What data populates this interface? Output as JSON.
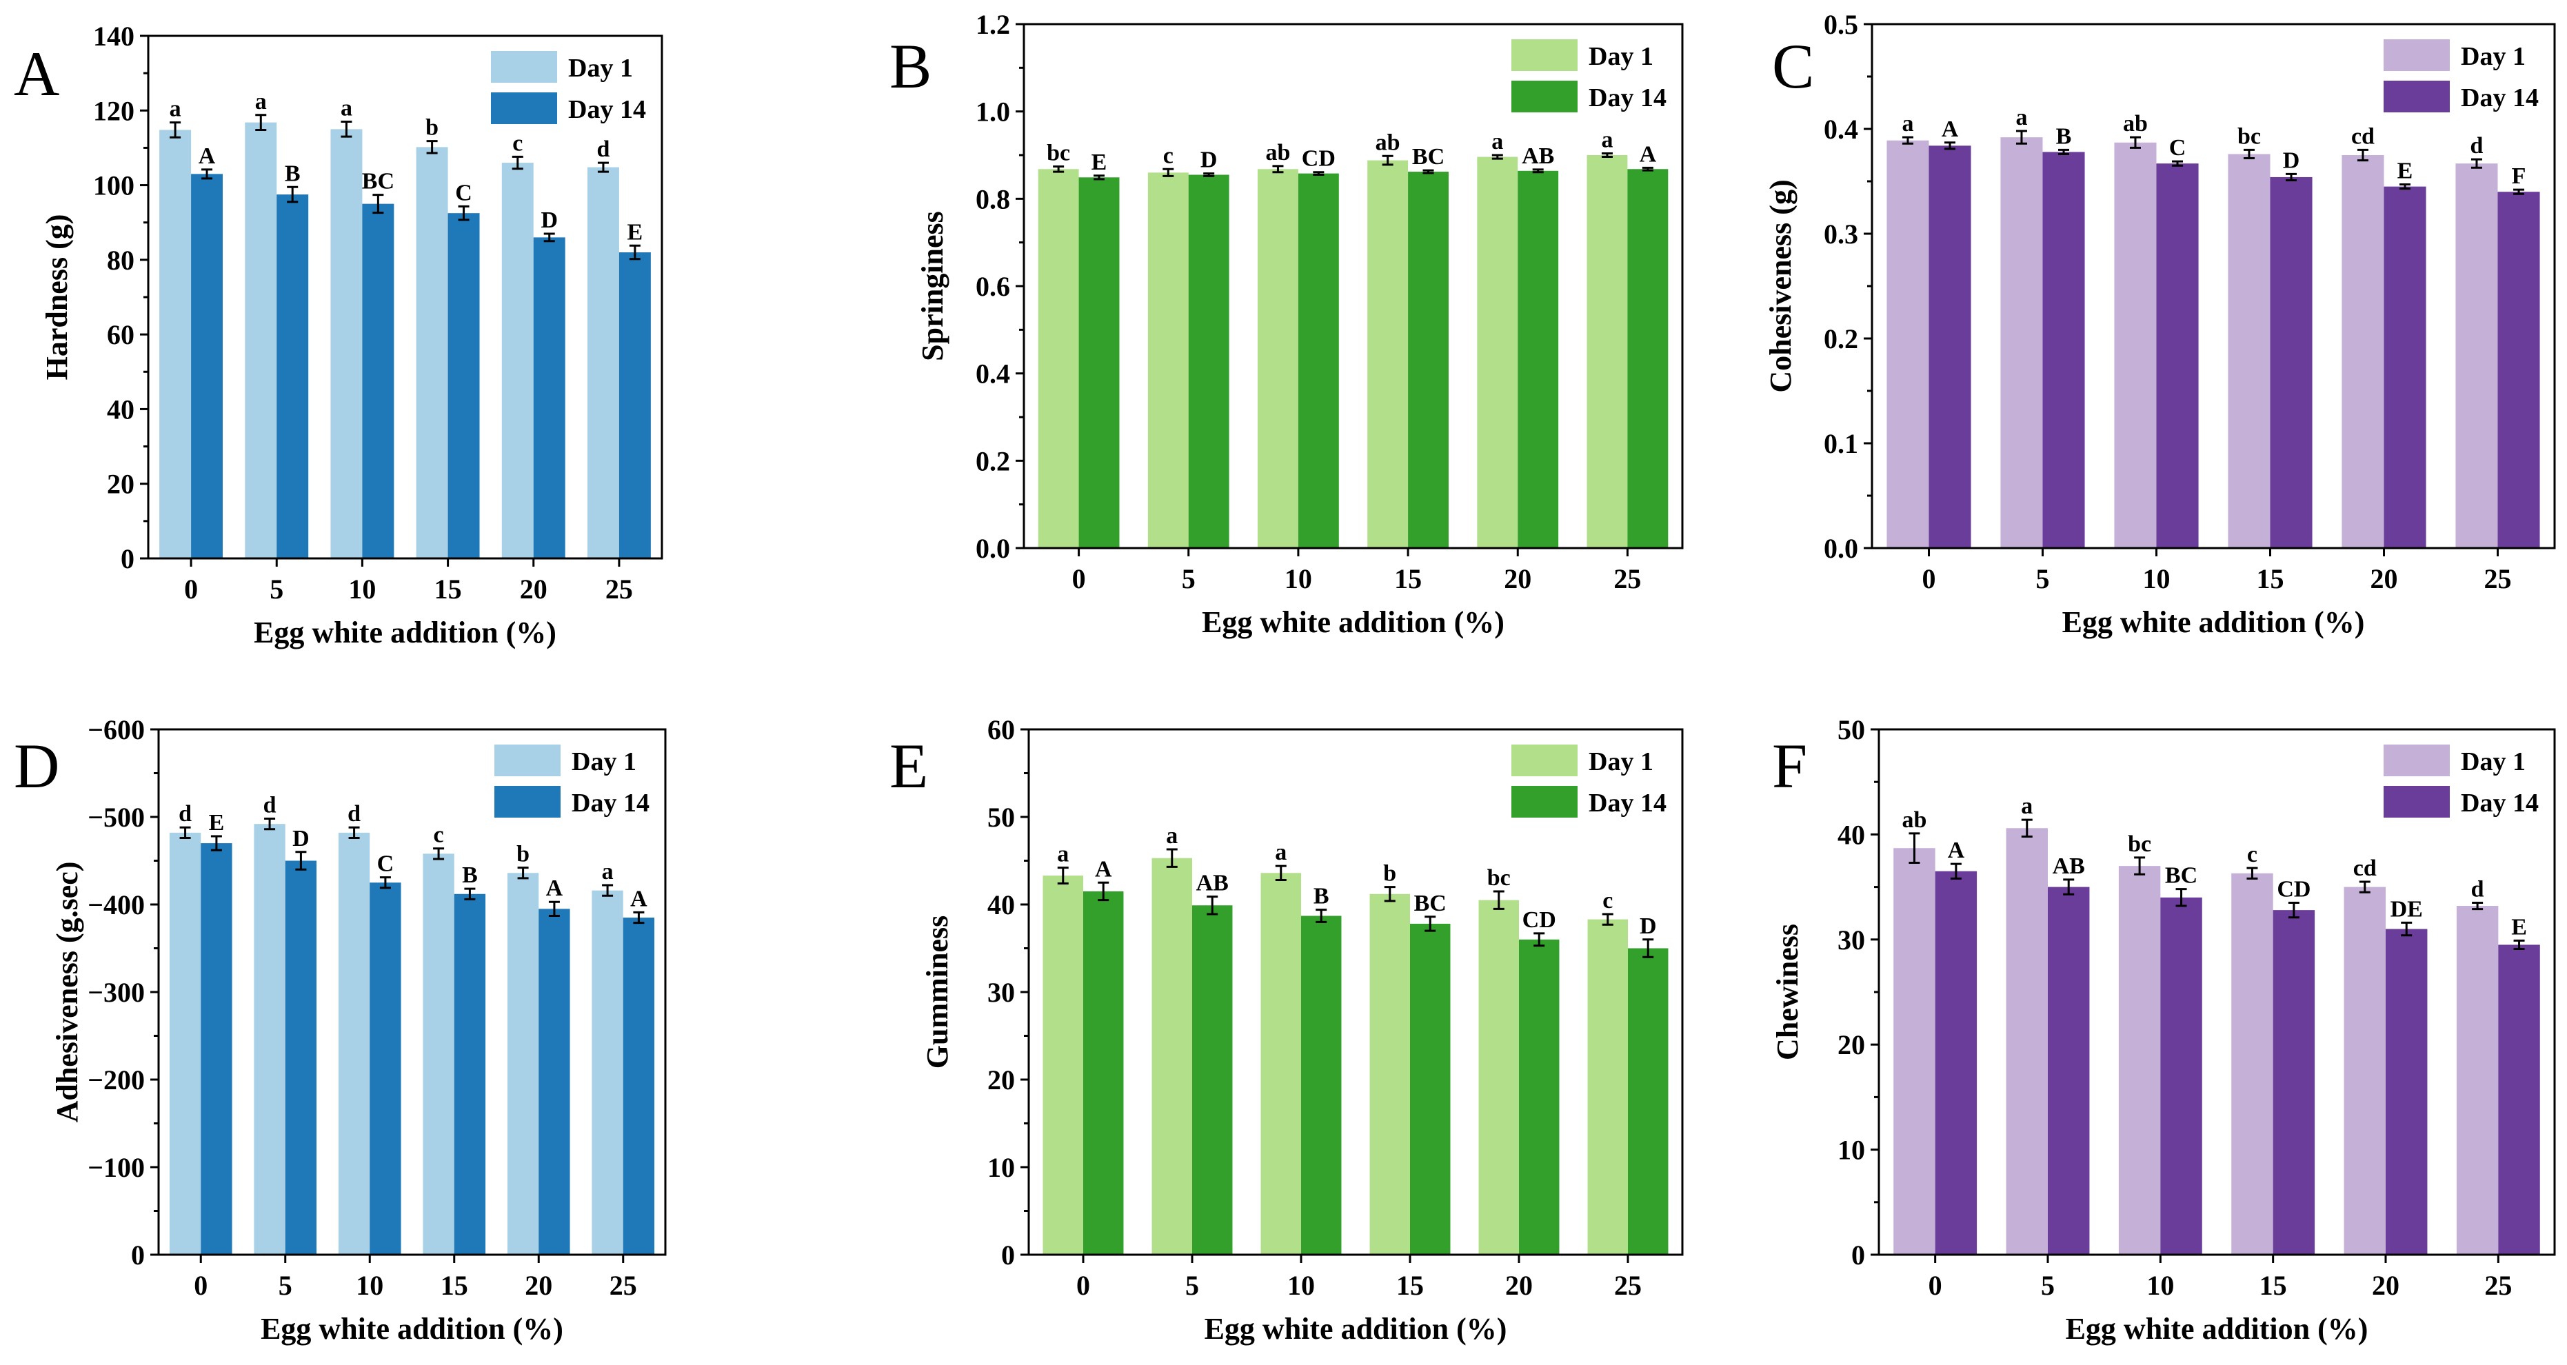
{
  "figure": {
    "colors": {
      "blue_light": "#a8d0e6",
      "blue_dark": "#1f78b8",
      "green_light": "#b2df8a",
      "green_dark": "#33a02c",
      "purple_light": "#c5b0d8",
      "purple_dark": "#6a3d9a"
    }
  },
  "chart_data": [
    {
      "panel": "A",
      "type": "bar",
      "xlabel": "Egg white addition (%)",
      "ylabel": "Hardness (g)",
      "categories": [
        "0",
        "5",
        "10",
        "15",
        "20",
        "25"
      ],
      "ylim": [
        0,
        140
      ],
      "yticks": [
        "0",
        "20",
        "40",
        "60",
        "80",
        "100",
        "120",
        "140"
      ],
      "legend_position": "top-right",
      "palette": "blue",
      "series": [
        {
          "name": "Day 1",
          "values": [
            114.8,
            116.8,
            115.0,
            110.2,
            106.0,
            104.8
          ],
          "errors": [
            2.0,
            2.0,
            2.0,
            1.6,
            1.6,
            1.2
          ],
          "labels": [
            "a",
            "a",
            "a",
            "b",
            "c",
            "d"
          ]
        },
        {
          "name": "Day 14",
          "values": [
            103.0,
            97.5,
            95.0,
            92.5,
            86.0,
            82.0
          ],
          "errors": [
            1.2,
            2.0,
            2.4,
            1.8,
            1.0,
            1.8
          ],
          "labels": [
            "A",
            "B",
            "BC",
            "C",
            "D",
            "E"
          ]
        }
      ]
    },
    {
      "panel": "B",
      "type": "bar",
      "xlabel": "Egg white addition (%)",
      "ylabel": "Springiness",
      "categories": [
        "0",
        "5",
        "10",
        "15",
        "20",
        "25"
      ],
      "ylim": [
        0,
        1.2
      ],
      "yticks": [
        "0.0",
        "0.2",
        "0.4",
        "0.6",
        "0.8",
        "1.0",
        "1.2"
      ],
      "legend_position": "top-right",
      "palette": "green",
      "series": [
        {
          "name": "Day 1",
          "values": [
            0.868,
            0.86,
            0.868,
            0.888,
            0.896,
            0.9
          ],
          "errors": [
            0.006,
            0.008,
            0.007,
            0.01,
            0.004,
            0.004
          ],
          "labels": [
            "bc",
            "c",
            "ab",
            "ab",
            "a",
            "a"
          ]
        },
        {
          "name": "Day 14",
          "values": [
            0.849,
            0.855,
            0.858,
            0.862,
            0.864,
            0.868
          ],
          "errors": [
            0.004,
            0.003,
            0.003,
            0.003,
            0.003,
            0.003
          ],
          "labels": [
            "E",
            "D",
            "CD",
            "BC",
            "AB",
            "A"
          ]
        }
      ]
    },
    {
      "panel": "C",
      "type": "bar",
      "xlabel": "Egg white addition (%)",
      "ylabel": "Cohesiveness (g)",
      "categories": [
        "0",
        "5",
        "10",
        "15",
        "20",
        "25"
      ],
      "ylim": [
        0,
        0.5
      ],
      "yticks": [
        "0.0",
        "0.1",
        "0.2",
        "0.3",
        "0.4",
        "0.5"
      ],
      "legend_position": "top-right",
      "palette": "purple",
      "series": [
        {
          "name": "Day 1",
          "values": [
            0.389,
            0.392,
            0.387,
            0.376,
            0.375,
            0.367
          ],
          "errors": [
            0.003,
            0.006,
            0.005,
            0.004,
            0.005,
            0.004
          ],
          "labels": [
            "a",
            "a",
            "ab",
            "bc",
            "cd",
            "d"
          ]
        },
        {
          "name": "Day 14",
          "values": [
            0.384,
            0.378,
            0.367,
            0.354,
            0.345,
            0.34
          ],
          "errors": [
            0.003,
            0.002,
            0.002,
            0.003,
            0.002,
            0.002
          ],
          "labels": [
            "A",
            "B",
            "C",
            "D",
            "E",
            "F"
          ]
        }
      ]
    },
    {
      "panel": "D",
      "type": "bar",
      "xlabel": "Egg white addition (%)",
      "ylabel": "Adhesiveness (g.sec)",
      "categories": [
        "0",
        "5",
        "10",
        "15",
        "20",
        "25"
      ],
      "ylim": [
        0,
        -600
      ],
      "yticks": [
        "0",
        "−100",
        "−200",
        "−300",
        "−400",
        "−500",
        "−600"
      ],
      "legend_position": "top-right",
      "palette": "blue",
      "series": [
        {
          "name": "Day 1",
          "values": [
            -482,
            -492,
            -482,
            -458,
            -436,
            -416
          ],
          "errors": [
            6,
            6,
            6,
            6,
            6,
            6
          ],
          "labels": [
            "d",
            "d",
            "d",
            "c",
            "b",
            "a"
          ]
        },
        {
          "name": "Day 14",
          "values": [
            -470,
            -450,
            -425,
            -412,
            -395,
            -385
          ],
          "errors": [
            8,
            10,
            6,
            6,
            8,
            6
          ],
          "labels": [
            "E",
            "D",
            "C",
            "B",
            "A",
            "A"
          ]
        }
      ]
    },
    {
      "panel": "E",
      "type": "bar",
      "xlabel": "Egg white addition (%)",
      "ylabel": "Gumminess",
      "categories": [
        "0",
        "5",
        "10",
        "15",
        "20",
        "25"
      ],
      "ylim": [
        0,
        60
      ],
      "yticks": [
        "0",
        "10",
        "20",
        "30",
        "40",
        "50",
        "60"
      ],
      "legend_position": "top-right",
      "palette": "green",
      "series": [
        {
          "name": "Day 1",
          "values": [
            43.3,
            45.3,
            43.6,
            41.2,
            40.5,
            38.3
          ],
          "errors": [
            0.9,
            1.0,
            0.8,
            0.8,
            1.0,
            0.6
          ],
          "labels": [
            "a",
            "a",
            "a",
            "b",
            "bc",
            "c"
          ]
        },
        {
          "name": "Day 14",
          "values": [
            41.5,
            39.9,
            38.7,
            37.8,
            36.0,
            35.0
          ],
          "errors": [
            1.0,
            1.0,
            0.7,
            0.8,
            0.7,
            1.0
          ],
          "labels": [
            "A",
            "AB",
            "B",
            "BC",
            "CD",
            "D"
          ]
        }
      ]
    },
    {
      "panel": "F",
      "type": "bar",
      "xlabel": "Egg white addition (%)",
      "ylabel": "Chewiness",
      "categories": [
        "0",
        "5",
        "10",
        "15",
        "20",
        "25"
      ],
      "ylim": [
        0,
        50
      ],
      "yticks": [
        "0",
        "10",
        "20",
        "30",
        "40",
        "50"
      ],
      "legend_position": "top-right",
      "palette": "purple",
      "series": [
        {
          "name": "Day 1",
          "values": [
            38.7,
            40.6,
            37.0,
            36.3,
            35.0,
            33.2
          ],
          "errors": [
            1.4,
            0.8,
            0.8,
            0.5,
            0.5,
            0.3
          ],
          "labels": [
            "ab",
            "a",
            "bc",
            "c",
            "cd",
            "d"
          ]
        },
        {
          "name": "Day 14",
          "values": [
            36.5,
            35.0,
            34.0,
            32.8,
            31.0,
            29.5
          ],
          "errors": [
            0.7,
            0.7,
            0.8,
            0.7,
            0.6,
            0.4
          ],
          "labels": [
            "A",
            "AB",
            "BC",
            "CD",
            "DE",
            "E"
          ]
        }
      ]
    }
  ]
}
